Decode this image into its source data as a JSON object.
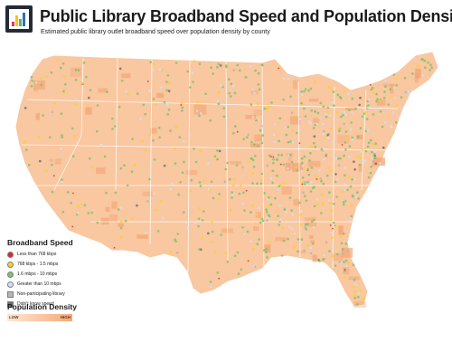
{
  "header": {
    "title": "Public Library Broadband Speed and Population Density",
    "subtitle": "Estimated public library outlet broadband speed over population density by county"
  },
  "logo": {
    "icon": "bar-chart-logo-icon",
    "bar_colors": [
      "#e23a3a",
      "#f6c323",
      "#5db85d",
      "#2f6fb5"
    ]
  },
  "legend": {
    "title": "Broadband Speed",
    "items": [
      {
        "label": "Less than 768 kbps",
        "color": "#e0262a",
        "shape": "circle"
      },
      {
        "label": "768 kbps - 1.5 mbps",
        "color": "#f9d41f",
        "shape": "circle"
      },
      {
        "label": "1.6 mbps - 10 mbps",
        "color": "#7cc46c",
        "shape": "circle"
      },
      {
        "label": "Greater than 10 mbps",
        "color": "#cfe3f2",
        "shape": "circle"
      },
      {
        "label": "Non-participating library",
        "color": "#b5b5b5",
        "shape": "square"
      },
      {
        "label": "Didn't know speed",
        "color": "#6e6e6e",
        "shape": "square"
      }
    ]
  },
  "density": {
    "title": "Population Density",
    "low_label": "LOW",
    "high_label": "HIGH",
    "low_color": "#fde7d6",
    "high_color": "#f6a876"
  },
  "map": {
    "region": "contiguous-united-states",
    "land_color": "#f9c7a0",
    "dense_color": "#f3a273",
    "border_color": "#ffffff"
  }
}
